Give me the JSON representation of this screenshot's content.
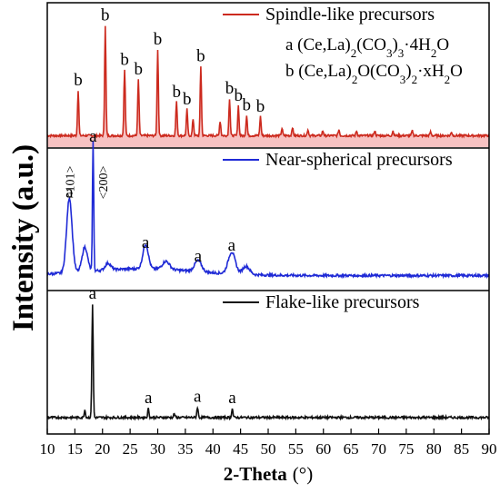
{
  "chart_data": {
    "type": "line",
    "ylabel": "Intensity (a.u.)",
    "xlabel_main": "2-Theta",
    "xlabel_unit": "(°)",
    "xlim": [
      10,
      90
    ],
    "x_ticks": [
      10,
      15,
      20,
      25,
      30,
      35,
      40,
      45,
      50,
      55,
      60,
      65,
      70,
      75,
      80,
      85,
      90
    ],
    "panels": [
      {
        "name": "Spindle-like precursors",
        "color": "#cc2a1e",
        "fill_color": "#f7c2c2",
        "legend_notes": [
          {
            "letter": "a",
            "pre": "(Ce,La)",
            "s1": "2",
            "mid": "(CO",
            "s2": "3",
            "mid2": ")",
            "s3": "3",
            "post": "·4H",
            "s4": "2",
            "end": "O"
          },
          {
            "letter": "b",
            "pre": "(Ce,La)",
            "s1": "2",
            "mid": "O(CO",
            "s2": "3",
            "mid2": ")",
            "s3": "2",
            "post": "·xH",
            "s4": "2",
            "end": "O"
          }
        ],
        "peaks": [
          {
            "x": 15.6,
            "h": 0.38,
            "label": "b"
          },
          {
            "x": 20.5,
            "h": 0.92,
            "label": "b"
          },
          {
            "x": 24.0,
            "h": 0.55,
            "label": "b"
          },
          {
            "x": 26.5,
            "h": 0.47,
            "label": "b"
          },
          {
            "x": 30.0,
            "h": 0.72,
            "label": "b"
          },
          {
            "x": 33.4,
            "h": 0.28,
            "label": "b"
          },
          {
            "x": 35.3,
            "h": 0.22,
            "label": "b"
          },
          {
            "x": 36.4,
            "h": 0.14,
            "label": ""
          },
          {
            "x": 37.8,
            "h": 0.58,
            "label": "b"
          },
          {
            "x": 41.3,
            "h": 0.12,
            "label": ""
          },
          {
            "x": 43.0,
            "h": 0.31,
            "label": "b"
          },
          {
            "x": 44.6,
            "h": 0.25,
            "label": "b"
          },
          {
            "x": 46.1,
            "h": 0.17,
            "label": "b"
          },
          {
            "x": 48.6,
            "h": 0.16,
            "label": "b"
          },
          {
            "x": 52.5,
            "h": 0.06,
            "label": ""
          },
          {
            "x": 54.4,
            "h": 0.07,
            "label": ""
          },
          {
            "x": 57.2,
            "h": 0.05,
            "label": ""
          },
          {
            "x": 59.9,
            "h": 0.04,
            "label": ""
          },
          {
            "x": 62.8,
            "h": 0.05,
            "label": ""
          },
          {
            "x": 66.0,
            "h": 0.04,
            "label": ""
          },
          {
            "x": 69.3,
            "h": 0.04,
            "label": ""
          },
          {
            "x": 72.6,
            "h": 0.04,
            "label": ""
          },
          {
            "x": 76.1,
            "h": 0.04,
            "label": ""
          },
          {
            "x": 79.4,
            "h": 0.03,
            "label": ""
          },
          {
            "x": 83.2,
            "h": 0.03,
            "label": ""
          }
        ]
      },
      {
        "name": "Near-spherical precursors",
        "color": "#1f2ad6",
        "annotations": [
          {
            "text": "<101>",
            "x": 14.0
          },
          {
            "text": "<200>",
            "x": 20.0
          }
        ],
        "peaks": [
          {
            "x": 14.0,
            "h": 0.55,
            "label": "a"
          },
          {
            "x": 16.8,
            "h": 0.18,
            "label": ""
          },
          {
            "x": 18.3,
            "h": 0.96,
            "label": "a"
          },
          {
            "x": 21.0,
            "h": 0.05,
            "label": ""
          },
          {
            "x": 27.8,
            "h": 0.18,
            "label": "a"
          },
          {
            "x": 31.5,
            "h": 0.06,
            "label": ""
          },
          {
            "x": 37.3,
            "h": 0.08,
            "label": "a"
          },
          {
            "x": 43.4,
            "h": 0.16,
            "label": "a"
          },
          {
            "x": 46.0,
            "h": 0.06,
            "label": ""
          }
        ]
      },
      {
        "name": "Flake-like precursors",
        "color": "#111111",
        "peaks": [
          {
            "x": 16.8,
            "h": 0.06,
            "label": ""
          },
          {
            "x": 18.2,
            "h": 0.88,
            "label": "a"
          },
          {
            "x": 28.3,
            "h": 0.07,
            "label": "a"
          },
          {
            "x": 33.0,
            "h": 0.03,
            "label": ""
          },
          {
            "x": 37.2,
            "h": 0.08,
            "label": "a"
          },
          {
            "x": 43.5,
            "h": 0.07,
            "label": "a"
          }
        ]
      }
    ]
  }
}
